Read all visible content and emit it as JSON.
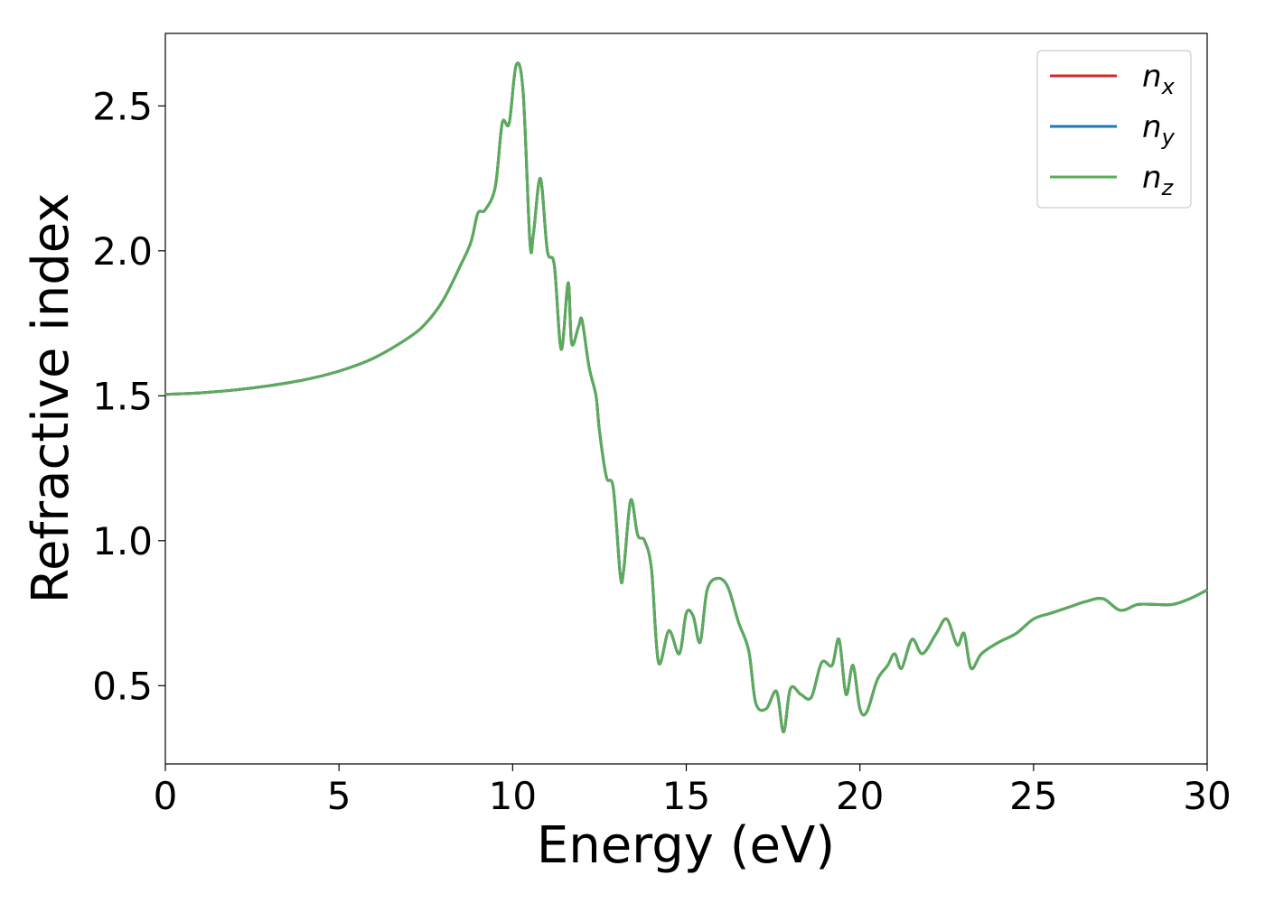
{
  "chart_data": {
    "type": "line",
    "title": "",
    "xlabel": "Energy (eV)",
    "ylabel": "Refractive index",
    "xlim": [
      0,
      30
    ],
    "ylim": [
      0.23,
      2.75
    ],
    "xticks": [
      0,
      5,
      10,
      15,
      20,
      25,
      30
    ],
    "xtick_labels": [
      "0",
      "5",
      "10",
      "15",
      "20",
      "25",
      "30"
    ],
    "yticks": [
      0.5,
      1.0,
      1.5,
      2.0,
      2.5
    ],
    "ytick_labels": [
      "0.5",
      "1.0",
      "1.5",
      "2.0",
      "2.5"
    ],
    "grid": false,
    "legend_position": "top-right",
    "series": [
      {
        "name": "n_x",
        "label_base": "n",
        "label_sub": "x",
        "color": "#d62728"
      },
      {
        "name": "n_y",
        "label_base": "n",
        "label_sub": "y",
        "color": "#1f77b4"
      },
      {
        "name": "n_z",
        "label_base": "n",
        "label_sub": "z",
        "color": "#5aac5a"
      }
    ],
    "x": [
      0,
      1,
      2,
      3,
      4,
      5,
      6,
      7,
      7.5,
      8,
      8.5,
      8.8,
      9.0,
      9.2,
      9.5,
      9.7,
      9.9,
      10.1,
      10.3,
      10.5,
      10.6,
      10.8,
      11.0,
      11.2,
      11.4,
      11.6,
      11.7,
      11.9,
      12.0,
      12.2,
      12.4,
      12.5,
      12.7,
      12.9,
      13.1,
      13.2,
      13.4,
      13.6,
      13.8,
      14.0,
      14.2,
      14.5,
      14.8,
      15.0,
      15.2,
      15.4,
      15.6,
      15.9,
      16.2,
      16.5,
      16.8,
      17.0,
      17.3,
      17.6,
      17.8,
      18.0,
      18.3,
      18.6,
      18.9,
      19.2,
      19.4,
      19.6,
      19.8,
      20.0,
      20.2,
      20.5,
      20.8,
      21.0,
      21.2,
      21.5,
      21.8,
      22.2,
      22.5,
      22.8,
      23.0,
      23.2,
      23.5,
      24.0,
      24.5,
      25.0,
      25.5,
      26.0,
      26.5,
      27.0,
      27.5,
      28.0,
      28.5,
      29.0,
      29.5,
      30.0
    ],
    "values": [
      1.505,
      1.51,
      1.52,
      1.535,
      1.555,
      1.585,
      1.63,
      1.7,
      1.75,
      1.83,
      1.95,
      2.03,
      2.13,
      2.14,
      2.22,
      2.44,
      2.44,
      2.64,
      2.55,
      2.03,
      2.06,
      2.25,
      2.0,
      1.95,
      1.66,
      1.89,
      1.68,
      1.74,
      1.76,
      1.6,
      1.5,
      1.38,
      1.22,
      1.18,
      0.88,
      0.9,
      1.14,
      1.02,
      1.0,
      0.9,
      0.58,
      0.69,
      0.61,
      0.75,
      0.74,
      0.65,
      0.83,
      0.87,
      0.84,
      0.72,
      0.62,
      0.44,
      0.42,
      0.48,
      0.34,
      0.49,
      0.47,
      0.46,
      0.58,
      0.57,
      0.66,
      0.47,
      0.57,
      0.42,
      0.41,
      0.52,
      0.57,
      0.61,
      0.56,
      0.66,
      0.61,
      0.68,
      0.73,
      0.64,
      0.68,
      0.56,
      0.61,
      0.65,
      0.68,
      0.73,
      0.75,
      0.77,
      0.79,
      0.8,
      0.76,
      0.78,
      0.78,
      0.78,
      0.8,
      0.83
    ]
  }
}
